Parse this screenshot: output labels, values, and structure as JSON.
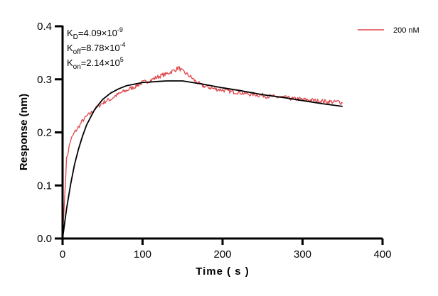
{
  "chart_data": {
    "type": "line",
    "xlabel": "Time ( s )",
    "ylabel": "Response (nm)",
    "xlim": [
      0,
      400
    ],
    "ylim": [
      0,
      0.4
    ],
    "xticks": [
      "0",
      "100",
      "200",
      "300",
      "400"
    ],
    "yticks": [
      "0.0",
      "0.1",
      "0.2",
      "0.3",
      "0.4"
    ],
    "grid": false,
    "legend_position": "top-right",
    "annotations": [
      {
        "main": "K",
        "sub": "D",
        "rest": "=4.09×10",
        "sup": "-9"
      },
      {
        "main": "K",
        "sub": "off",
        "rest": "=8.78×10",
        "sup": "-4"
      },
      {
        "main": "K",
        "sub": "on",
        "rest": "=2.14×10",
        "sup": "5"
      }
    ],
    "series": [
      {
        "name": "200 nM",
        "color": "#e0464b",
        "x": [
          0,
          5,
          10,
          15,
          20,
          25,
          30,
          35,
          40,
          45,
          50,
          55,
          60,
          65,
          70,
          75,
          80,
          85,
          90,
          95,
          100,
          105,
          110,
          115,
          120,
          125,
          130,
          135,
          140,
          145,
          150,
          155,
          160,
          165,
          170,
          175,
          180,
          185,
          190,
          195,
          200,
          205,
          210,
          215,
          220,
          225,
          230,
          235,
          240,
          245,
          250,
          255,
          260,
          265,
          270,
          275,
          280,
          285,
          290,
          295,
          300,
          305,
          310,
          315,
          320,
          325,
          330,
          335,
          340,
          345,
          350
        ],
        "y": [
          0,
          0.15,
          0.185,
          0.2,
          0.21,
          0.222,
          0.23,
          0.236,
          0.243,
          0.25,
          0.255,
          0.26,
          0.262,
          0.268,
          0.272,
          0.276,
          0.279,
          0.283,
          0.286,
          0.29,
          0.294,
          0.296,
          0.298,
          0.302,
          0.305,
          0.308,
          0.31,
          0.314,
          0.317,
          0.322,
          0.315,
          0.31,
          0.305,
          0.298,
          0.292,
          0.288,
          0.286,
          0.284,
          0.282,
          0.281,
          0.28,
          0.278,
          0.277,
          0.276,
          0.276,
          0.274,
          0.273,
          0.272,
          0.272,
          0.27,
          0.27,
          0.268,
          0.268,
          0.267,
          0.266,
          0.266,
          0.265,
          0.264,
          0.263,
          0.263,
          0.262,
          0.261,
          0.261,
          0.26,
          0.259,
          0.259,
          0.258,
          0.258,
          0.257,
          0.258,
          0.255
        ]
      },
      {
        "color": "#000000",
        "x": [
          0,
          5,
          10,
          15,
          20,
          25,
          30,
          40,
          50,
          60,
          70,
          80,
          90,
          100,
          110,
          120,
          130,
          140,
          150,
          175,
          200,
          225,
          250,
          275,
          300,
          325,
          350
        ],
        "y": [
          0,
          0.056,
          0.102,
          0.14,
          0.169,
          0.193,
          0.214,
          0.243,
          0.262,
          0.274,
          0.282,
          0.288,
          0.291,
          0.294,
          0.295,
          0.296,
          0.297,
          0.297,
          0.297,
          0.291,
          0.284,
          0.278,
          0.271,
          0.266,
          0.26,
          0.254,
          0.249
        ]
      }
    ]
  }
}
